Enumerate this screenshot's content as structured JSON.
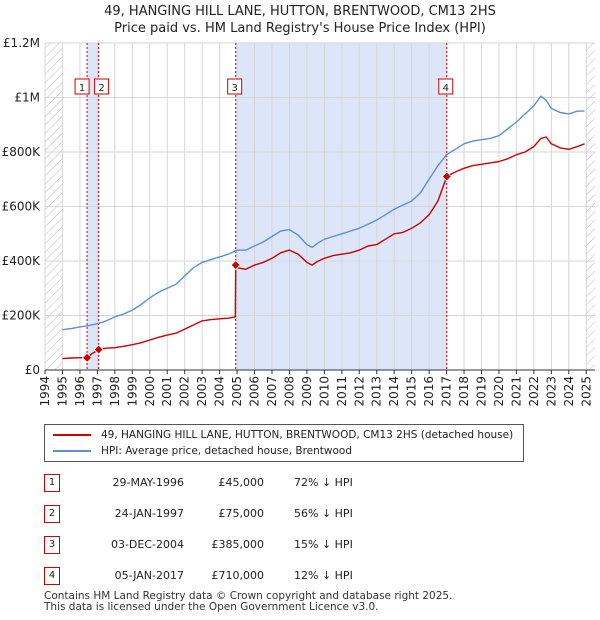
{
  "header": {
    "title_line1": "49, HANGING HILL LANE, HUTTON, BRENTWOOD, CM13 2HS",
    "title_line2": "Price paid vs. HM Land Registry's House Price Index (HPI)"
  },
  "colors": {
    "property": "#cc0000",
    "hpi": "#5b8fd6",
    "shade": "#dde5f8",
    "hatch": "#bbbbbb",
    "grid": "#d6d6d6"
  },
  "chart_data": {
    "type": "line",
    "title": "Price paid vs. HM Land Registry's House Price Index (HPI)",
    "xlim": [
      1994,
      2025
    ],
    "ylim": [
      0,
      1200000
    ],
    "x_ticks": [
      "1994",
      "1995",
      "1996",
      "1997",
      "1998",
      "1999",
      "2000",
      "2001",
      "2002",
      "2003",
      "2004",
      "2005",
      "2006",
      "2007",
      "2008",
      "2009",
      "2010",
      "2011",
      "2012",
      "2013",
      "2014",
      "2015",
      "2016",
      "2017",
      "2018",
      "2019",
      "2020",
      "2021",
      "2022",
      "2023",
      "2024",
      "2025"
    ],
    "y_ticks": [
      {
        "value": 0,
        "label": "£0"
      },
      {
        "value": 200000,
        "label": "£200K"
      },
      {
        "value": 400000,
        "label": "£400K"
      },
      {
        "value": 600000,
        "label": "£600K"
      },
      {
        "value": 800000,
        "label": "£800K"
      },
      {
        "value": 1000000,
        "label": "£1M"
      },
      {
        "value": 1200000,
        "label": "£1.2M"
      }
    ],
    "shaded_ranges": [
      [
        1996.41,
        1997.07
      ],
      [
        2004.92,
        2017.01
      ]
    ],
    "hatched_ranges": [
      [
        1994.0,
        1995.0
      ],
      [
        2025.0,
        2025.5
      ]
    ],
    "series": [
      {
        "name": "49, HANGING HILL LANE, HUTTON, BRENTWOOD, CM13 2HS (detached house)",
        "color": "#cc0000",
        "x": [
          1995.0,
          1995.5,
          1996.0,
          1996.41,
          1996.7,
          1997.07,
          1997.5,
          1998.0,
          1998.5,
          1999.0,
          1999.5,
          2000.0,
          2000.5,
          2001.0,
          2001.5,
          2002.0,
          2002.5,
          2003.0,
          2003.5,
          2004.0,
          2004.5,
          2004.9,
          2004.92,
          2005.0,
          2005.5,
          2006.0,
          2006.5,
          2007.0,
          2007.5,
          2008.0,
          2008.5,
          2009.0,
          2009.3,
          2009.6,
          2010.0,
          2010.5,
          2011.0,
          2011.5,
          2012.0,
          2012.5,
          2013.0,
          2013.5,
          2014.0,
          2014.5,
          2015.0,
          2015.5,
          2016.0,
          2016.5,
          2017.01,
          2017.3,
          2017.6,
          2018.0,
          2018.5,
          2019.0,
          2019.5,
          2020.0,
          2020.5,
          2021.0,
          2021.5,
          2022.0,
          2022.4,
          2022.7,
          2023.0,
          2023.5,
          2024.0,
          2024.5,
          2024.9
        ],
        "y": [
          42000,
          44000,
          45000,
          45000,
          60000,
          75000,
          80000,
          82000,
          87000,
          93000,
          100000,
          110000,
          120000,
          128000,
          135000,
          150000,
          165000,
          180000,
          185000,
          188000,
          190000,
          195000,
          385000,
          375000,
          370000,
          385000,
          395000,
          410000,
          430000,
          440000,
          425000,
          395000,
          385000,
          398000,
          410000,
          420000,
          425000,
          430000,
          440000,
          455000,
          460000,
          480000,
          500000,
          505000,
          520000,
          540000,
          570000,
          620000,
          710000,
          720000,
          730000,
          740000,
          750000,
          755000,
          760000,
          765000,
          775000,
          790000,
          800000,
          820000,
          850000,
          855000,
          830000,
          815000,
          810000,
          820000,
          830000
        ]
      },
      {
        "name": "HPI: Average price, detached house, Brentwood",
        "color": "#5b8fd6",
        "x": [
          1995.0,
          1995.5,
          1996.0,
          1996.5,
          1997.0,
          1997.5,
          1998.0,
          1998.5,
          1999.0,
          1999.5,
          2000.0,
          2000.5,
          2001.0,
          2001.5,
          2002.0,
          2002.5,
          2003.0,
          2003.5,
          2004.0,
          2004.5,
          2005.0,
          2005.5,
          2006.0,
          2006.5,
          2007.0,
          2007.5,
          2008.0,
          2008.5,
          2009.0,
          2009.3,
          2009.6,
          2010.0,
          2010.5,
          2011.0,
          2011.5,
          2012.0,
          2012.5,
          2013.0,
          2013.5,
          2014.0,
          2014.5,
          2015.0,
          2015.5,
          2016.0,
          2016.5,
          2017.0,
          2017.5,
          2018.0,
          2018.5,
          2019.0,
          2019.5,
          2020.0,
          2020.5,
          2021.0,
          2021.5,
          2022.0,
          2022.4,
          2022.7,
          2023.0,
          2023.5,
          2024.0,
          2024.5,
          2024.9
        ],
        "y": [
          148000,
          152000,
          158000,
          163000,
          170000,
          180000,
          195000,
          205000,
          220000,
          240000,
          265000,
          285000,
          300000,
          315000,
          345000,
          375000,
          395000,
          405000,
          415000,
          425000,
          440000,
          440000,
          455000,
          470000,
          490000,
          510000,
          515000,
          495000,
          460000,
          450000,
          465000,
          480000,
          490000,
          500000,
          510000,
          520000,
          535000,
          550000,
          570000,
          590000,
          605000,
          620000,
          650000,
          700000,
          750000,
          790000,
          810000,
          830000,
          840000,
          845000,
          850000,
          860000,
          885000,
          910000,
          940000,
          970000,
          1005000,
          990000,
          960000,
          945000,
          940000,
          950000,
          950000
        ]
      }
    ],
    "sales": [
      {
        "label": "1",
        "x": 1996.41,
        "y": 45000
      },
      {
        "label": "2",
        "x": 1997.07,
        "y": 75000
      },
      {
        "label": "3",
        "x": 2004.92,
        "y": 385000
      },
      {
        "label": "4",
        "x": 2017.01,
        "y": 710000
      }
    ]
  },
  "legend": {
    "property_label": "49, HANGING HILL LANE, HUTTON, BRENTWOOD, CM13 2HS (detached house)",
    "hpi_label": "HPI: Average price, detached house, Brentwood"
  },
  "transactions": [
    {
      "num": "1",
      "date": "29-MAY-1996",
      "price": "£45,000",
      "hpi": "72% ↓ HPI"
    },
    {
      "num": "2",
      "date": "24-JAN-1997",
      "price": "£75,000",
      "hpi": "56% ↓ HPI"
    },
    {
      "num": "3",
      "date": "03-DEC-2004",
      "price": "£385,000",
      "hpi": "15% ↓ HPI"
    },
    {
      "num": "4",
      "date": "05-JAN-2017",
      "price": "£710,000",
      "hpi": "12% ↓ HPI"
    }
  ],
  "footer": {
    "line1": "Contains HM Land Registry data © Crown copyright and database right 2025.",
    "line2": "This data is licensed under the Open Government Licence v3.0."
  }
}
